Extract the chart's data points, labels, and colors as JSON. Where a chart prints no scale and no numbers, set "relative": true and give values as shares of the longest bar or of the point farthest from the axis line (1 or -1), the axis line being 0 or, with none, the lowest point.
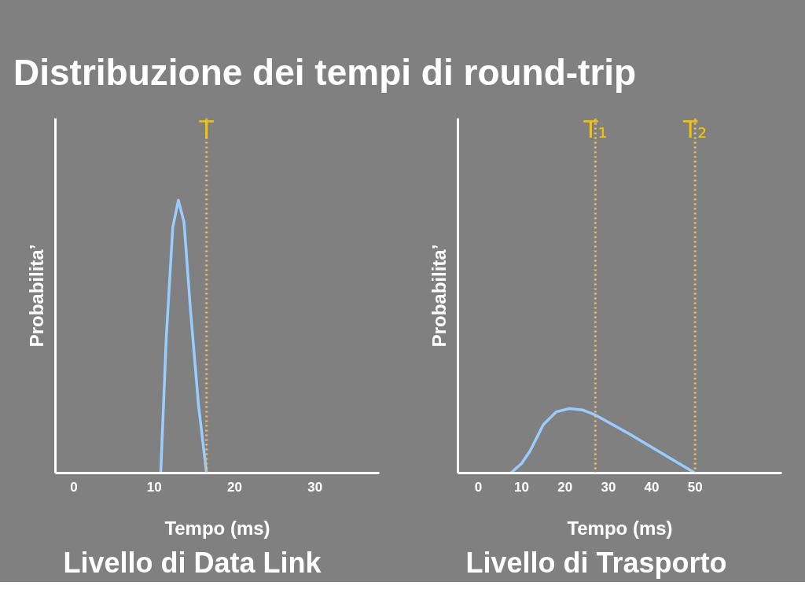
{
  "chart_data": [
    {
      "type": "line",
      "title": "Distribuzione dei tempi di round-trip",
      "xlabel": "Tempo (ms)",
      "ylabel": "Probabilita’",
      "relative": true,
      "xlim": [
        -2.3,
        38
      ],
      "xticks": [
        0,
        10,
        20,
        30
      ],
      "grid": false,
      "marker": "none",
      "line_style": "solid",
      "series": [
        {
          "color": "#99ccff",
          "x": [
            10.8,
            11.5,
            12.3,
            13,
            13.7,
            14.5,
            15.5,
            16.5
          ],
          "values": [
            0,
            0.5,
            0.9,
            1,
            0.92,
            0.6,
            0.25,
            0
          ]
        }
      ],
      "ref_lines": [
        {
          "axis": "x",
          "value": 16.5,
          "label": "T",
          "color": "#f5c060",
          "line_style": "dotted"
        }
      ],
      "annotations": [
        "Livello di Data Link"
      ]
    },
    {
      "type": "line",
      "xlabel": "Tempo (ms)",
      "ylabel": "Probabilita’",
      "relative": true,
      "xlim": [
        -4.7,
        70
      ],
      "xticks": [
        0,
        10,
        20,
        30,
        40,
        50
      ],
      "grid": false,
      "marker": "none",
      "line_style": "solid",
      "series": [
        {
          "color": "#99ccff",
          "x": [
            7.5,
            10,
            12,
            15,
            18,
            21,
            24,
            27,
            35,
            42,
            50
          ],
          "values": [
            0,
            0.15,
            0.35,
            0.75,
            0.95,
            1,
            0.98,
            0.9,
            0.6,
            0.32,
            0
          ]
        }
      ],
      "ref_lines": [
        {
          "axis": "x",
          "value": 27,
          "label": "T₁",
          "color": "#f5c060",
          "line_style": "dotted"
        },
        {
          "axis": "x",
          "value": 50,
          "label": "T₂",
          "color": "#f5c060",
          "line_style": "dotted"
        }
      ],
      "annotations": [
        "Livello di Trasporto"
      ]
    }
  ]
}
